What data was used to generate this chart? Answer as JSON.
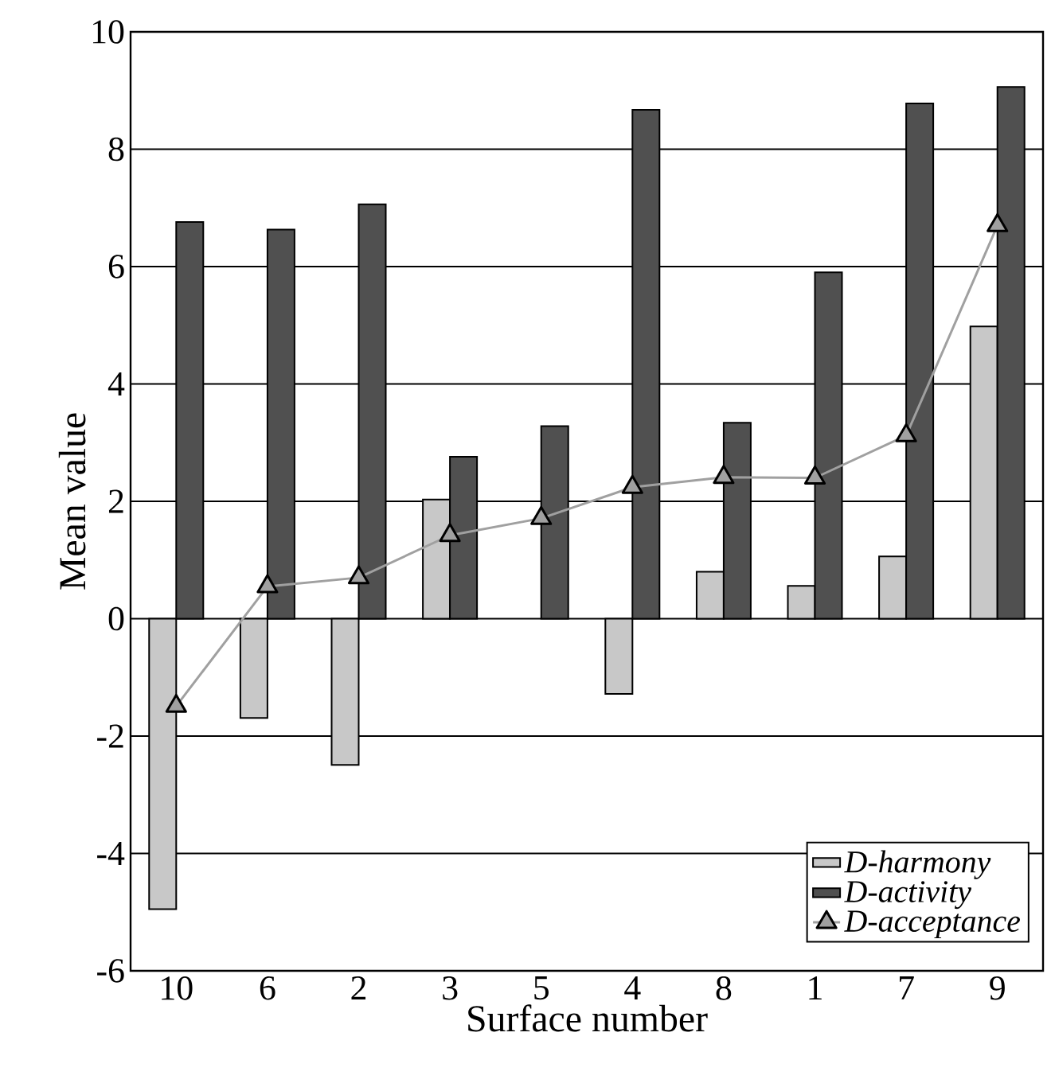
{
  "chart_data": {
    "type": "bar",
    "xlabel": "Surface number",
    "ylabel": "Mean value",
    "categories": [
      "10",
      "6",
      "2",
      "3",
      "5",
      "4",
      "8",
      "1",
      "7",
      "9"
    ],
    "series": [
      {
        "name": "D-harmony",
        "color": "#c8c8c8",
        "values": [
          -4.95,
          -1.69,
          -2.49,
          2.03,
          null,
          -1.28,
          0.8,
          0.56,
          1.06,
          4.98
        ]
      },
      {
        "name": "D-activity",
        "color": "#505050",
        "values": [
          6.76,
          6.63,
          7.06,
          2.76,
          3.28,
          8.67,
          3.34,
          5.9,
          8.78,
          9.06
        ]
      },
      {
        "name": "D-acceptance",
        "type": "line",
        "marker": "triangle",
        "color": "#a0a0a0",
        "values": [
          -1.49,
          0.55,
          0.7,
          1.42,
          1.71,
          2.24,
          2.41,
          2.4,
          3.12,
          6.7
        ]
      }
    ],
    "ylim": [
      -6,
      10
    ],
    "yticks": [
      -6,
      -4,
      -2,
      0,
      2,
      4,
      6,
      8,
      10
    ],
    "grid": "y",
    "legend": "bottom right"
  }
}
